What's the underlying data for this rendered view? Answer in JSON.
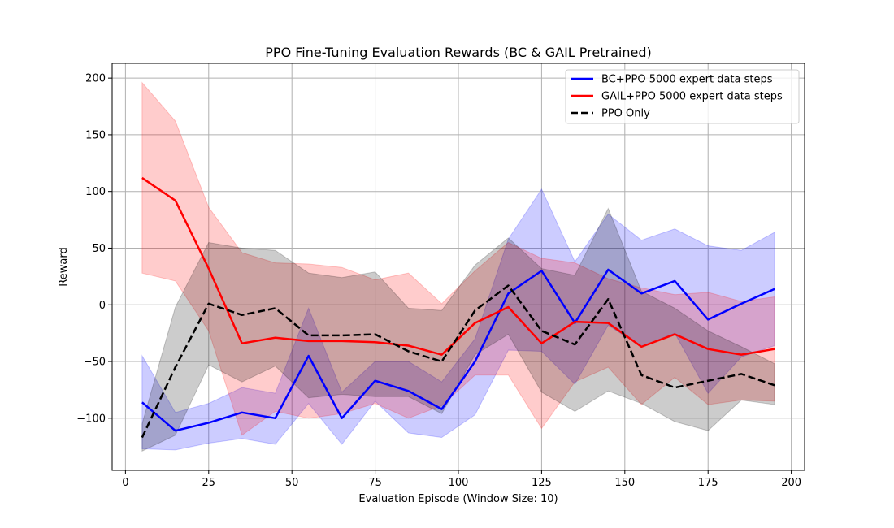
{
  "chart_data": {
    "type": "line",
    "title": "PPO Fine-Tuning Evaluation Rewards (BC & GAIL Pretrained)",
    "xlabel": "Evaluation Episode (Window Size: 10)",
    "ylabel": "Reward",
    "xlim": [
      -4,
      204
    ],
    "ylim": [
      -146,
      213
    ],
    "xticks": [
      0,
      25,
      50,
      75,
      100,
      125,
      150,
      175,
      200
    ],
    "yticks": [
      -100,
      -50,
      0,
      50,
      100,
      150,
      200
    ],
    "grid": true,
    "legend_position": "top-right",
    "x": [
      5,
      15,
      25,
      35,
      45,
      55,
      65,
      75,
      85,
      95,
      105,
      115,
      125,
      135,
      145,
      155,
      165,
      175,
      185,
      195
    ],
    "series": [
      {
        "name": "BC+PPO 5000 expert data steps",
        "color": "#0000ff",
        "style": "solid",
        "values": [
          -86,
          -111,
          -104,
          -95,
          -100,
          -45,
          -100,
          -67,
          -76,
          -92,
          -50,
          10,
          30,
          -16,
          31,
          10,
          21,
          -13,
          1,
          14
        ],
        "upper": [
          -45,
          -95,
          -87,
          -73,
          -78,
          -3,
          -77,
          -50,
          -50,
          -68,
          -30,
          58,
          102,
          38,
          80,
          57,
          67,
          52,
          48,
          64
        ],
        "lower": [
          -127,
          -128,
          -122,
          -118,
          -123,
          -87,
          -123,
          -85,
          -113,
          -117,
          -97,
          -40,
          -41,
          -70,
          -18,
          -37,
          -25,
          -78,
          -46,
          -36
        ]
      },
      {
        "name": "GAIL+PPO 5000 expert data steps",
        "color": "#ff0000",
        "style": "solid",
        "values": [
          112,
          92,
          32,
          -34,
          -29,
          -32,
          -32,
          -33,
          -36,
          -44,
          -16,
          -2,
          -34,
          -15,
          -16,
          -37,
          -26,
          -39,
          -44,
          -39
        ],
        "upper": [
          196,
          162,
          86,
          46,
          37,
          36,
          33,
          22,
          28,
          1,
          30,
          55,
          41,
          37,
          23,
          15,
          9,
          11,
          3,
          7
        ],
        "lower": [
          28,
          21,
          -23,
          -115,
          -94,
          -100,
          -96,
          -87,
          -100,
          -89,
          -62,
          -62,
          -109,
          -68,
          -55,
          -88,
          -64,
          -88,
          -84,
          -85
        ]
      },
      {
        "name": "PPO Only",
        "color": "#000000",
        "style": "dashed",
        "values": [
          -117,
          -55,
          1,
          -9,
          -3,
          -27,
          -27,
          -26,
          -41,
          -50,
          -5,
          17,
          -23,
          -35,
          5,
          -62,
          -73,
          -67,
          -61,
          -71
        ],
        "upper": [
          -105,
          -2,
          55,
          50,
          48,
          28,
          24,
          29,
          -3,
          -5,
          35,
          59,
          32,
          26,
          85,
          12,
          -3,
          -23,
          -37,
          -52
        ],
        "lower": [
          -129,
          -115,
          -53,
          -68,
          -54,
          -82,
          -79,
          -81,
          -81,
          -96,
          -44,
          -26,
          -77,
          -94,
          -76,
          -87,
          -103,
          -111,
          -84,
          -88
        ]
      }
    ]
  }
}
